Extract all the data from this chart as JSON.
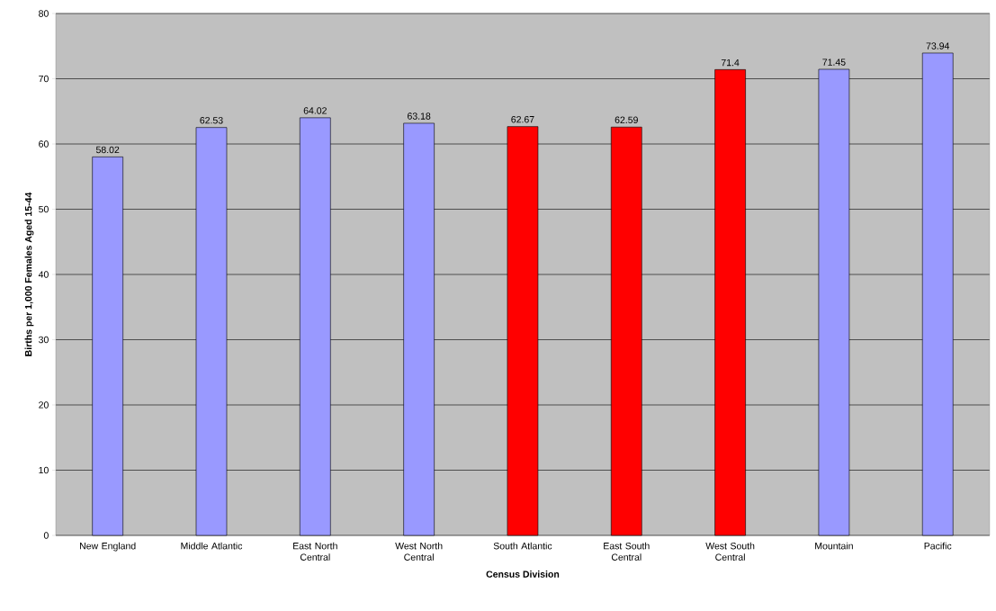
{
  "chart_data": {
    "type": "bar",
    "xlabel": "Census Division",
    "ylabel": "Births per 1,000 Females Aged 15-44",
    "categories": [
      "New England",
      "Middle Atlantic",
      "East North Central",
      "West North Central",
      "South Atlantic",
      "East South Central",
      "West South Central",
      "Mountain",
      "Pacific"
    ],
    "values": [
      58.02,
      62.53,
      64.02,
      63.18,
      62.67,
      62.59,
      71.4,
      71.45,
      73.94
    ],
    "colors": [
      "#9999ff",
      "#9999ff",
      "#9999ff",
      "#9999ff",
      "#ff0000",
      "#ff0000",
      "#ff0000",
      "#9999ff",
      "#9999ff"
    ],
    "ylim": [
      0,
      80
    ],
    "yticks": [
      0,
      10,
      20,
      30,
      40,
      50,
      60,
      70,
      80
    ],
    "grid": "y",
    "data_labels": true
  }
}
